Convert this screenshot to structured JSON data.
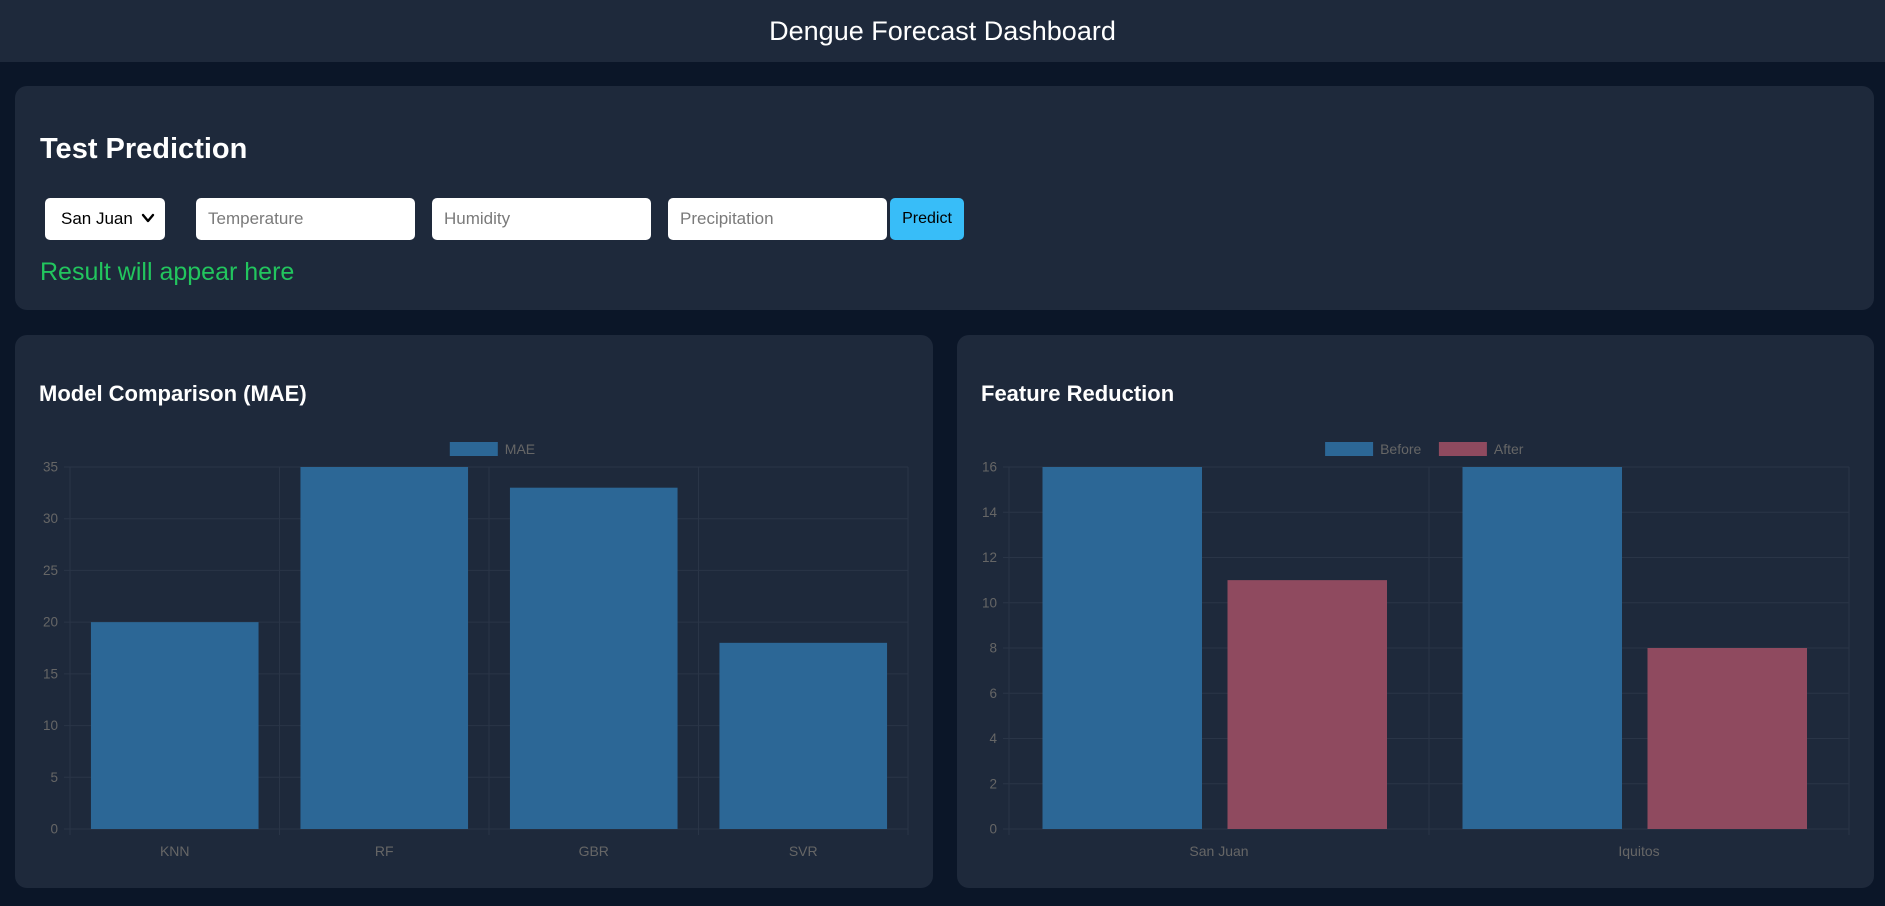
{
  "header": {
    "title": "Dengue Forecast Dashboard"
  },
  "prediction": {
    "title": "Test Prediction",
    "city_selected": "San Juan",
    "temperature_placeholder": "Temperature",
    "humidity_placeholder": "Humidity",
    "precipitation_placeholder": "Precipitation",
    "predict_label": "Predict",
    "result_text": "Result will appear here"
  },
  "colors": {
    "series_blue": "#2c6796",
    "series_red": "#8f4a5f",
    "result_green": "#22c55e",
    "button": "#38bdf8"
  },
  "chart_data": [
    {
      "type": "bar",
      "title": "Model Comparison (MAE)",
      "categories": [
        "KNN",
        "RF",
        "GBR",
        "SVR"
      ],
      "series": [
        {
          "name": "MAE",
          "values": [
            20,
            35,
            33,
            18
          ]
        }
      ],
      "ylim": [
        0,
        35
      ],
      "yticks": [
        0,
        5,
        10,
        15,
        20,
        25,
        30,
        35
      ],
      "grid": true,
      "legend": "top-center"
    },
    {
      "type": "bar",
      "title": "Feature Reduction",
      "categories": [
        "San Juan",
        "Iquitos"
      ],
      "series": [
        {
          "name": "Before",
          "values": [
            16,
            16
          ]
        },
        {
          "name": "After",
          "values": [
            11,
            8
          ]
        }
      ],
      "ylim": [
        0,
        16
      ],
      "yticks": [
        0,
        2,
        4,
        6,
        8,
        10,
        12,
        14,
        16
      ],
      "grid": true,
      "legend": "top-center"
    }
  ]
}
